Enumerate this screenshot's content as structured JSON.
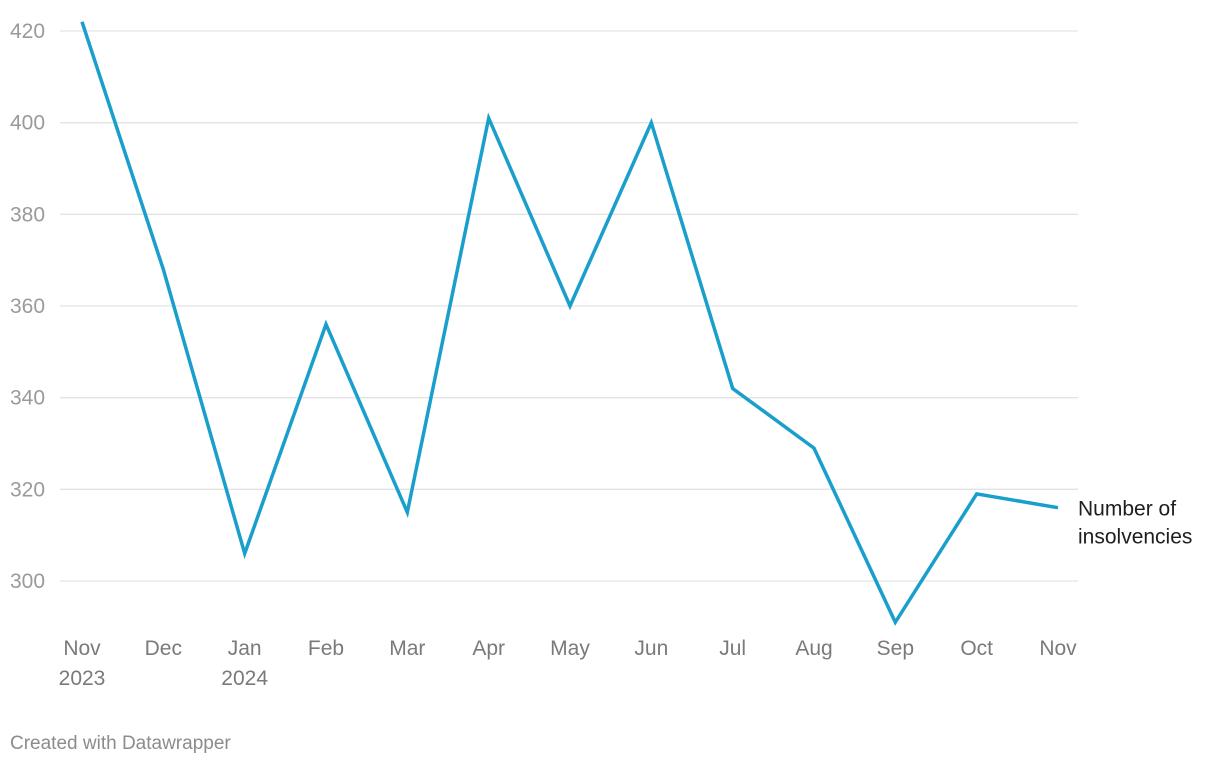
{
  "chart_data": {
    "type": "line",
    "title": "",
    "xlabel": "",
    "ylabel": "",
    "categories": [
      {
        "month": "Nov",
        "year": "2023"
      },
      {
        "month": "Dec",
        "year": ""
      },
      {
        "month": "Jan",
        "year": "2024"
      },
      {
        "month": "Feb",
        "year": ""
      },
      {
        "month": "Mar",
        "year": ""
      },
      {
        "month": "Apr",
        "year": ""
      },
      {
        "month": "May",
        "year": ""
      },
      {
        "month": "Jun",
        "year": ""
      },
      {
        "month": "Jul",
        "year": ""
      },
      {
        "month": "Aug",
        "year": ""
      },
      {
        "month": "Sep",
        "year": ""
      },
      {
        "month": "Oct",
        "year": ""
      },
      {
        "month": "Nov",
        "year": ""
      }
    ],
    "series": [
      {
        "name": "Number of insolvencies",
        "label_lines": [
          "Number of",
          "insolvencies"
        ],
        "color": "#1a9fcc",
        "values": [
          422,
          368,
          306,
          356,
          315,
          401,
          360,
          400,
          342,
          329,
          291,
          319,
          316
        ]
      }
    ],
    "y_ticks": [
      300,
      320,
      340,
      360,
      380,
      400,
      420
    ],
    "ylim": [
      290,
      424
    ],
    "grid": true,
    "legend": "inline label at end of line"
  },
  "footer": {
    "credit": "Created with Datawrapper"
  }
}
